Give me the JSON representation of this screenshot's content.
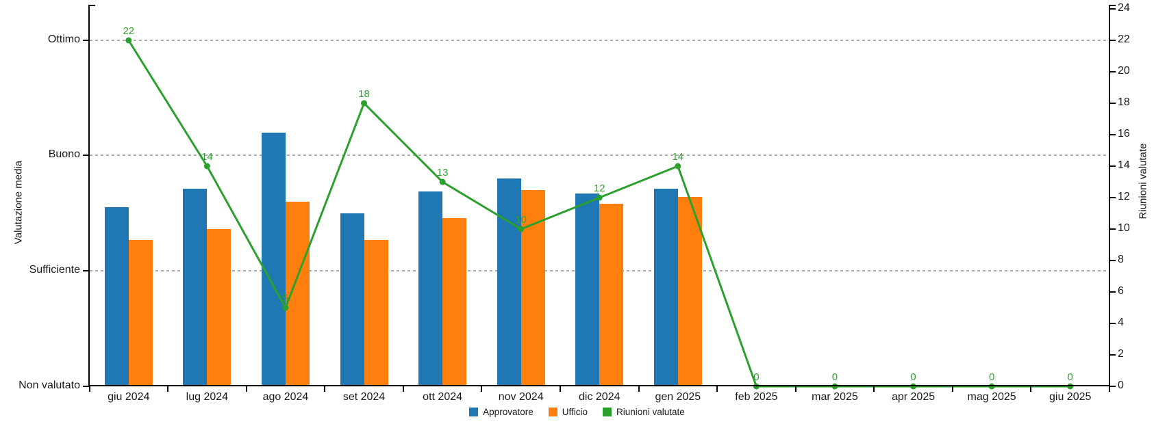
{
  "chart_data": {
    "type": "bar+line",
    "title": "",
    "categories": [
      "giu 2024",
      "lug 2024",
      "ago 2024",
      "set 2024",
      "ott 2024",
      "nov 2024",
      "dic 2024",
      "gen 2025",
      "feb 2025",
      "mar 2025",
      "apr 2025",
      "mag 2025",
      "giu 2025"
    ],
    "bar_series": [
      {
        "name": "Approvatore",
        "color": "#1f77b4",
        "axis": "left",
        "values": [
          1.55,
          1.71,
          2.2,
          1.5,
          1.69,
          1.8,
          1.67,
          1.71,
          null,
          null,
          null,
          null,
          null
        ]
      },
      {
        "name": "Ufficio",
        "color": "#ff7f0e",
        "axis": "left",
        "values": [
          1.27,
          1.36,
          1.6,
          1.27,
          1.46,
          1.7,
          1.58,
          1.64,
          null,
          null,
          null,
          null,
          null
        ]
      }
    ],
    "line_series": {
      "name": "Riunioni valutate",
      "color": "#2ca02c",
      "axis": "right",
      "values": [
        22,
        14,
        5,
        18,
        13,
        10,
        12,
        14,
        0,
        0,
        0,
        0,
        0
      ],
      "data_labels": [
        "22",
        "14",
        "5",
        "18",
        "13",
        "10",
        "12",
        "14",
        "0",
        "0",
        "0",
        "0",
        "0"
      ],
      "marker": "circle"
    },
    "left_axis": {
      "title": "Valutazione media",
      "tick_labels": [
        {
          "text": "Non valutato",
          "value": 0
        },
        {
          "text": "Sufficiente",
          "value": 1
        },
        {
          "text": "Buono",
          "value": 2
        },
        {
          "text": "Ottimo",
          "value": 3
        }
      ],
      "min": 0,
      "max": 3.27,
      "gridlines_at": [
        1,
        2,
        3
      ],
      "gridline_style": "dashed gray"
    },
    "right_axis": {
      "title": "Riunioni valutate",
      "min": 0,
      "max": 24,
      "step": 2
    },
    "legend_position": "bottom-center",
    "ylim_right": [
      0,
      24
    ]
  },
  "axes": {
    "left": {
      "title": "Valutazione media"
    },
    "right": {
      "title": "Riunioni valutate"
    }
  },
  "legend": {
    "items": [
      {
        "label": "Approvatore",
        "color": "#1f77b4"
      },
      {
        "label": "Ufficio",
        "color": "#ff7f0e"
      },
      {
        "label": "Riunioni valutate",
        "color": "#2ca02c"
      }
    ]
  },
  "colors": {
    "bar_blue": "#1f77b4",
    "bar_orange": "#ff7f0e",
    "line_green": "#2ca02c",
    "data_label_green": "#33a033",
    "grid_gray": "#ababab",
    "axis_black": "#000000",
    "text": "#1a1a1a"
  }
}
